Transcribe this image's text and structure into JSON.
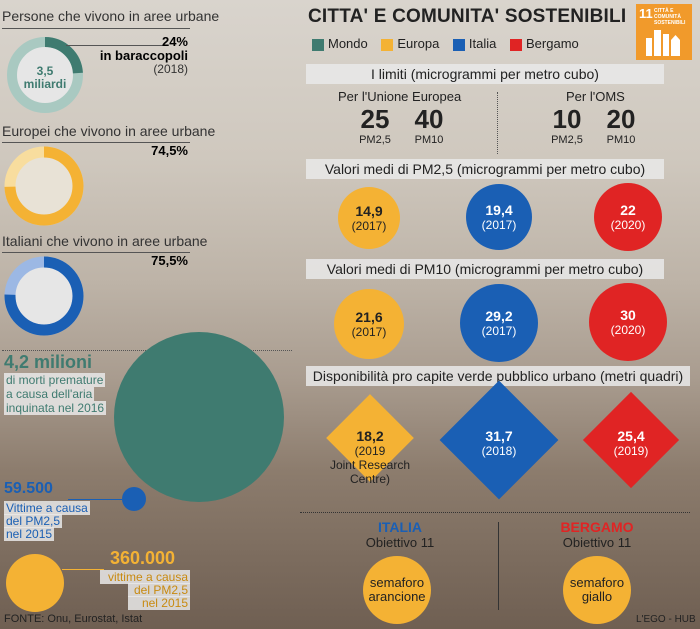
{
  "colors": {
    "mondo": "#3f7b70",
    "europa": "#f4b234",
    "italia": "#1a5fb4",
    "bergamo": "#e02424"
  },
  "left": {
    "world": {
      "title": "Persone che vivono in aree urbane",
      "center_value": "3,5",
      "center_unit": "miliardi",
      "pct": "24%",
      "pct_label": "in baraccopoli",
      "year": "(2018)",
      "fraction": 0.24
    },
    "europe": {
      "title": "Europei che vivono in aree urbane",
      "pct": "74,5%",
      "fraction": 0.745
    },
    "italy": {
      "title": "Italiani che vivono in aree urbane",
      "pct": "75,5%",
      "fraction": 0.755
    },
    "deaths": {
      "value": "4,2 milioni",
      "line1": "di morti premature",
      "line2": "a causa dell'aria",
      "line3": "inquinata nel 2016"
    },
    "italy_victims": {
      "value": "59.500",
      "line1": "Vittime a causa",
      "line2": "del PM2,5",
      "line3": "nel 2015"
    },
    "europe_victims": {
      "value": "360.000",
      "line1": "vittime a causa",
      "line2": "del PM2,5",
      "line3": "nel 2015"
    },
    "source": "FONTE: Onu, Eurostat, Istat"
  },
  "right": {
    "title": "CITTA' E COMUNITA' SOSTENIBILI",
    "sdg_number": "11",
    "sdg_text": "CITTÀ E COMUNITÀ SOSTENIBILI",
    "legend": [
      "Mondo",
      "Europa",
      "Italia",
      "Bergamo"
    ],
    "limits": {
      "header": "I limiti (microgrammi per metro cubo)",
      "ue_label": "Per l'Unione Europea",
      "oms_label": "Per l'OMS",
      "ue_pm25": "25",
      "ue_pm10": "40",
      "oms_pm25": "10",
      "oms_pm10": "20",
      "pm25_label": "PM2,5",
      "pm10_label": "PM10"
    },
    "pm25": {
      "header": "Valori medi di PM2,5 (microgrammi per metro cubo)",
      "items": [
        {
          "value": "14,9",
          "year": "(2017)"
        },
        {
          "value": "19,4",
          "year": "(2017)"
        },
        {
          "value": "22",
          "year": "(2020)"
        }
      ]
    },
    "pm10": {
      "header": "Valori medi di PM10 (microgrammi per metro cubo)",
      "items": [
        {
          "value": "21,6",
          "year": "(2017)"
        },
        {
          "value": "29,2",
          "year": "(2017)"
        },
        {
          "value": "30",
          "year": "(2020)"
        }
      ]
    },
    "green": {
      "header": "Disponibilità pro capite verde pubblico urbano (metri quadri)",
      "items": [
        {
          "value": "18,2",
          "year": "(2019",
          "note1": "Joint Research",
          "note2": "Centre)"
        },
        {
          "value": "31,7",
          "year": "(2018)"
        },
        {
          "value": "25,4",
          "year": "(2019)"
        }
      ]
    },
    "objectives": {
      "italia": "ITALIA",
      "bergamo": "BERGAMO",
      "obiettivo": "Obiettivo 11",
      "semaforo_it_1": "semaforo",
      "semaforo_it_2": "arancione",
      "semaforo_bg_1": "semaforo",
      "semaforo_bg_2": "giallo"
    },
    "credit": "L'EGO - HUB"
  }
}
